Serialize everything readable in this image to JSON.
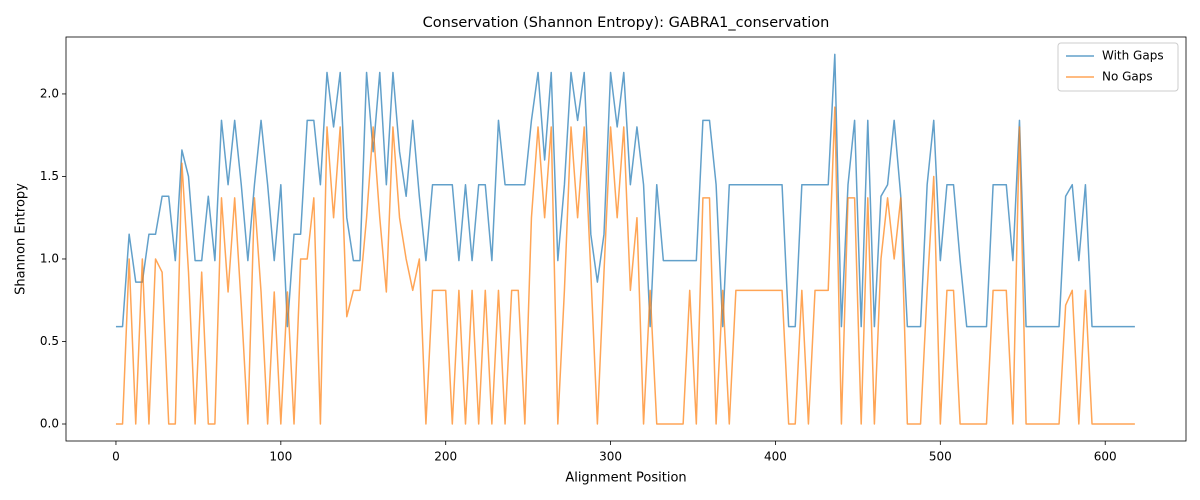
{
  "chart_data": {
    "type": "line",
    "title": "Conservation (Shannon Entropy): GABRA1_conservation",
    "x_label": "Alignment Position",
    "y_label": "Shannon Entropy",
    "x": [
      0,
      4,
      8,
      12,
      16,
      20,
      24,
      28,
      32,
      36,
      40,
      44,
      48,
      52,
      56,
      60,
      64,
      68,
      72,
      76,
      80,
      84,
      88,
      92,
      96,
      100,
      104,
      108,
      112,
      116,
      120,
      124,
      128,
      132,
      136,
      140,
      144,
      148,
      152,
      156,
      160,
      164,
      168,
      172,
      176,
      180,
      184,
      188,
      192,
      196,
      200,
      204,
      208,
      212,
      216,
      220,
      224,
      228,
      232,
      236,
      240,
      244,
      248,
      252,
      256,
      260,
      264,
      268,
      272,
      276,
      280,
      284,
      288,
      292,
      296,
      300,
      304,
      308,
      312,
      316,
      320,
      324,
      328,
      332,
      336,
      340,
      344,
      348,
      352,
      356,
      360,
      364,
      368,
      372,
      376,
      380,
      384,
      388,
      392,
      396,
      400,
      404,
      408,
      412,
      416,
      420,
      424,
      428,
      432,
      436,
      440,
      444,
      448,
      452,
      456,
      460,
      464,
      468,
      472,
      476,
      480,
      484,
      488,
      492,
      496,
      500,
      504,
      508,
      512,
      516,
      520,
      524,
      528,
      532,
      536,
      540,
      544,
      548,
      552,
      556,
      560,
      564,
      568,
      572,
      576,
      580,
      584,
      588,
      592,
      596,
      600,
      604,
      608,
      612,
      616,
      618
    ],
    "series": [
      {
        "name": "With Gaps",
        "color": "#1f77b4",
        "values": [
          0.59,
          0.59,
          1.15,
          0.86,
          0.86,
          1.15,
          1.15,
          1.38,
          1.38,
          0.99,
          1.66,
          1.5,
          0.99,
          0.99,
          1.38,
          0.99,
          1.84,
          1.45,
          1.84,
          1.45,
          0.99,
          1.45,
          1.84,
          1.45,
          0.99,
          1.45,
          0.59,
          1.15,
          1.15,
          1.84,
          1.84,
          1.45,
          2.13,
          1.8,
          2.13,
          1.25,
          0.99,
          0.99,
          2.13,
          1.65,
          2.13,
          1.45,
          2.13,
          1.65,
          1.38,
          1.84,
          1.38,
          0.99,
          1.45,
          1.45,
          1.45,
          1.45,
          0.99,
          1.45,
          0.99,
          1.45,
          1.45,
          0.99,
          1.84,
          1.45,
          1.45,
          1.45,
          1.45,
          1.84,
          2.13,
          1.6,
          2.13,
          0.99,
          1.45,
          2.13,
          1.84,
          2.13,
          1.15,
          0.86,
          1.15,
          2.13,
          1.8,
          2.13,
          1.45,
          1.8,
          1.45,
          0.59,
          1.45,
          0.99,
          0.99,
          0.99,
          0.99,
          0.99,
          0.99,
          1.84,
          1.84,
          1.45,
          0.59,
          1.45,
          1.45,
          1.45,
          1.45,
          1.45,
          1.45,
          1.45,
          1.45,
          1.45,
          0.59,
          0.59,
          1.45,
          1.45,
          1.45,
          1.45,
          1.45,
          2.24,
          0.59,
          1.45,
          1.84,
          0.59,
          1.84,
          0.59,
          1.38,
          1.45,
          1.84,
          1.38,
          0.59,
          0.59,
          0.59,
          1.45,
          1.84,
          0.99,
          1.45,
          1.45,
          0.99,
          0.59,
          0.59,
          0.59,
          0.59,
          1.45,
          1.45,
          1.45,
          0.99,
          1.84,
          0.59,
          0.59,
          0.59,
          0.59,
          0.59,
          0.59,
          1.38,
          1.45,
          0.99,
          1.45,
          0.59,
          0.59,
          0.59,
          0.59,
          0.59,
          0.59,
          0.59,
          0.59
        ]
      },
      {
        "name": "No Gaps",
        "color": "#ff7f0e",
        "values": [
          0,
          0,
          1.0,
          0,
          1.0,
          0,
          1.0,
          0.92,
          0,
          0,
          1.58,
          0.92,
          0,
          0.92,
          0,
          0,
          1.37,
          0.8,
          1.37,
          0.72,
          0,
          1.37,
          0.8,
          0,
          0.8,
          0,
          0.8,
          0,
          1.0,
          1.0,
          1.37,
          0,
          1.8,
          1.25,
          1.8,
          0.65,
          0.81,
          0.81,
          1.25,
          1.8,
          1.25,
          0.8,
          1.8,
          1.25,
          1.0,
          0.81,
          1.0,
          0,
          0.81,
          0.81,
          0.81,
          0,
          0.81,
          0,
          0.81,
          0,
          0.81,
          0,
          0.81,
          0,
          0.81,
          0.81,
          0,
          1.25,
          1.8,
          1.25,
          1.8,
          0,
          0.81,
          1.8,
          1.25,
          1.8,
          0.92,
          0,
          0.92,
          1.8,
          1.25,
          1.8,
          0.81,
          1.25,
          0,
          0.81,
          0,
          0,
          0,
          0,
          0,
          0.81,
          0,
          1.37,
          1.37,
          0,
          0.81,
          0,
          0.81,
          0.81,
          0.81,
          0.81,
          0.81,
          0.81,
          0.81,
          0.81,
          0,
          0,
          0.81,
          0,
          0.81,
          0.81,
          0.81,
          1.92,
          0,
          1.37,
          1.37,
          0,
          1.37,
          0,
          1.0,
          1.37,
          1.0,
          1.37,
          0,
          0,
          0,
          0.81,
          1.5,
          0,
          0.81,
          0.81,
          0,
          0,
          0,
          0,
          0,
          0.81,
          0.81,
          0.81,
          0,
          1.8,
          0,
          0,
          0,
          0,
          0,
          0,
          0.72,
          0.81,
          0,
          0.81,
          0,
          0,
          0,
          0,
          0,
          0,
          0,
          0
        ]
      }
    ],
    "xlim": [
      -30.3,
      649
    ],
    "ylim": [
      -0.103,
      2.345
    ],
    "xticks": [
      0,
      100,
      200,
      300,
      400,
      500,
      600
    ],
    "yticks": [
      {
        "value": 0,
        "label": "0.0"
      },
      0.5,
      {
        "value": 1,
        "label": "1.0"
      },
      1.5,
      {
        "value": 2,
        "label": "2.0"
      }
    ],
    "legend": "upper right",
    "grid": false
  }
}
